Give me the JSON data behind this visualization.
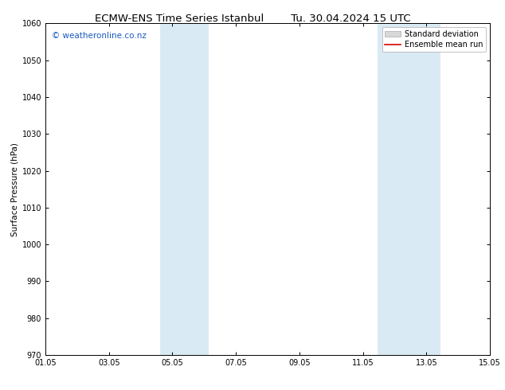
{
  "title_left": "ECMW-ENS Time Series Istanbul",
  "title_right": "Tu. 30.04.2024 15 UTC",
  "ylabel": "Surface Pressure (hPa)",
  "ylim": [
    970,
    1060
  ],
  "yticks": [
    970,
    980,
    990,
    1000,
    1010,
    1020,
    1030,
    1040,
    1050,
    1060
  ],
  "xlim_start": 0,
  "xlim_end": 14,
  "xtick_labels": [
    "01.05",
    "03.05",
    "05.05",
    "07.05",
    "09.05",
    "11.05",
    "13.05",
    "15.05"
  ],
  "xtick_positions": [
    0,
    2,
    4,
    6,
    8,
    10,
    12,
    14
  ],
  "shaded_bands": [
    {
      "x_start": 3.6,
      "x_end": 5.15
    },
    {
      "x_start": 10.45,
      "x_end": 12.45
    }
  ],
  "band_color": "#daeaf5",
  "watermark_text": "© weatheronline.co.nz",
  "watermark_color": "#1a5abf",
  "watermark_fontsize": 7.5,
  "legend_std_label": "Standard deviation",
  "legend_ens_label": "Ensemble mean run",
  "legend_std_facecolor": "#d8d8d8",
  "legend_std_edgecolor": "#aaaaaa",
  "legend_ens_color": "#dd0000",
  "title_fontsize": 9.5,
  "ylabel_fontsize": 7.5,
  "tick_fontsize": 7,
  "legend_fontsize": 7,
  "bg_color": "#ffffff",
  "spine_color": "#000000",
  "fig_width": 6.34,
  "fig_height": 4.9,
  "dpi": 100
}
